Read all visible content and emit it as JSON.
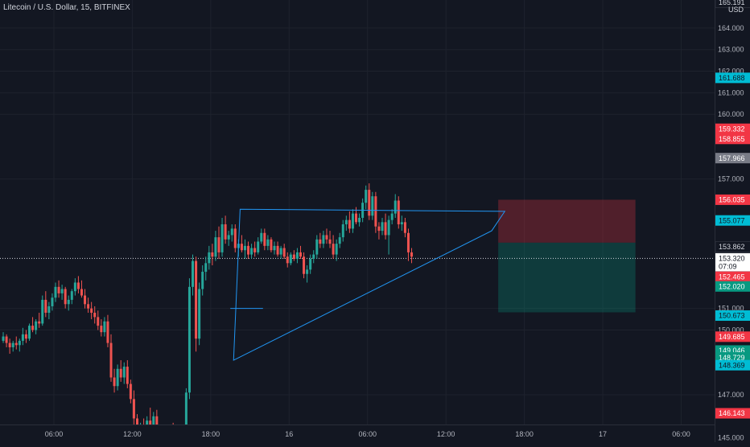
{
  "header": {
    "title": "Litecoin / U.S. Dollar, 15, BITFINEX",
    "currency": "USD"
  },
  "colors": {
    "up": "#26a69a",
    "down": "#ef5350",
    "line": "#2196f3",
    "grid": "#1e222d",
    "stop": "#f23645",
    "target": "#089981",
    "cyan": "#00bcd4",
    "gray": "#787b86"
  },
  "chart_data": {
    "type": "candlestick",
    "symbol": "Litecoin / U.S. Dollar",
    "interval": "15",
    "exchange": "BITFINEX",
    "y_ticks": [
      "164.000",
      "163.000",
      "162.000",
      "161.000",
      "160.000",
      "157.000",
      "151.000",
      "150.000",
      "147.000",
      "145.000"
    ],
    "ylim": [
      144.8,
      165.3
    ],
    "x_ticks": [
      {
        "label": "06:00",
        "bar": 16
      },
      {
        "label": "12:00",
        "bar": 40
      },
      {
        "label": "18:00",
        "bar": 64
      },
      {
        "label": "16",
        "bar": 88
      },
      {
        "label": "06:00",
        "bar": 112
      },
      {
        "label": "12:00",
        "bar": 136
      },
      {
        "label": "18:00",
        "bar": 160
      },
      {
        "label": "17",
        "bar": 184
      },
      {
        "label": "06:00",
        "bar": 208
      }
    ],
    "candles": [
      [
        149.5,
        149.9,
        149.4,
        149.7
      ],
      [
        149.7,
        149.8,
        149.2,
        149.4
      ],
      [
        149.4,
        149.6,
        148.9,
        149.2
      ],
      [
        149.2,
        149.5,
        149.0,
        149.4
      ],
      [
        149.4,
        149.7,
        149.1,
        149.3
      ],
      [
        149.3,
        149.6,
        149.0,
        149.5
      ],
      [
        149.5,
        150.1,
        149.3,
        149.8
      ],
      [
        149.8,
        150.0,
        149.4,
        149.6
      ],
      [
        149.6,
        150.3,
        149.5,
        150.2
      ],
      [
        150.2,
        150.6,
        149.9,
        150.0
      ],
      [
        150.0,
        150.5,
        149.8,
        150.4
      ],
      [
        150.4,
        150.8,
        150.1,
        150.3
      ],
      [
        150.3,
        151.6,
        150.2,
        151.4
      ],
      [
        151.4,
        151.8,
        150.6,
        150.8
      ],
      [
        150.8,
        151.3,
        150.5,
        151.1
      ],
      [
        151.1,
        151.7,
        150.9,
        151.5
      ],
      [
        151.5,
        152.2,
        151.3,
        152.0
      ],
      [
        152.0,
        152.3,
        151.5,
        151.7
      ],
      [
        151.7,
        152.1,
        151.4,
        151.9
      ],
      [
        151.9,
        152.0,
        151.0,
        151.2
      ],
      [
        151.2,
        151.6,
        150.9,
        151.4
      ],
      [
        151.4,
        151.9,
        151.2,
        151.8
      ],
      [
        151.8,
        152.4,
        151.6,
        152.2
      ],
      [
        152.2,
        152.5,
        151.7,
        151.9
      ],
      [
        151.9,
        152.3,
        151.5,
        151.6
      ],
      [
        151.6,
        151.9,
        151.0,
        151.2
      ],
      [
        151.2,
        151.5,
        150.8,
        151.0
      ],
      [
        151.0,
        151.3,
        150.5,
        150.8
      ],
      [
        150.8,
        151.1,
        150.3,
        150.6
      ],
      [
        150.6,
        150.9,
        150.0,
        150.2
      ],
      [
        150.2,
        150.5,
        149.7,
        149.9
      ],
      [
        149.9,
        150.6,
        149.7,
        150.4
      ],
      [
        150.4,
        150.7,
        149.2,
        149.4
      ],
      [
        149.4,
        149.8,
        147.6,
        147.8
      ],
      [
        147.8,
        148.2,
        147.1,
        147.4
      ],
      [
        147.4,
        148.4,
        147.2,
        148.2
      ],
      [
        148.2,
        148.6,
        147.6,
        147.8
      ],
      [
        147.8,
        148.5,
        147.5,
        148.3
      ],
      [
        148.3,
        148.6,
        147.3,
        147.5
      ],
      [
        147.5,
        147.7,
        146.6,
        146.8
      ],
      [
        146.8,
        147.2,
        145.6,
        145.9
      ],
      [
        145.9,
        146.1,
        145.0,
        145.3
      ],
      [
        145.3,
        145.7,
        144.9,
        145.5
      ],
      [
        145.5,
        145.9,
        145.1,
        145.3
      ],
      [
        145.3,
        146.0,
        145.0,
        145.8
      ],
      [
        145.8,
        146.4,
        145.4,
        145.6
      ],
      [
        145.6,
        146.2,
        145.3,
        146.0
      ],
      [
        146.0,
        146.3,
        144.9,
        145.2
      ],
      [
        145.2,
        145.5,
        144.9,
        145.1
      ],
      [
        145.1,
        145.4,
        144.9,
        145.3
      ],
      [
        145.3,
        145.6,
        145.0,
        145.2
      ],
      [
        145.2,
        145.6,
        145.0,
        145.5
      ],
      [
        145.5,
        145.7,
        145.0,
        145.1
      ],
      [
        145.1,
        145.4,
        144.9,
        145.2
      ],
      [
        145.2,
        145.3,
        144.9,
        145.0
      ],
      [
        145.0,
        145.6,
        144.9,
        145.4
      ],
      [
        145.4,
        147.3,
        145.2,
        147.1
      ],
      [
        147.1,
        152.4,
        146.8,
        152.0
      ],
      [
        152.0,
        153.5,
        151.6,
        153.2
      ],
      [
        153.2,
        153.4,
        149.0,
        149.6
      ],
      [
        149.6,
        152.2,
        149.3,
        151.9
      ],
      [
        151.9,
        153.0,
        151.6,
        152.7
      ],
      [
        152.7,
        153.4,
        152.3,
        153.1
      ],
      [
        153.1,
        153.9,
        152.8,
        153.6
      ],
      [
        153.6,
        154.0,
        153.0,
        153.4
      ],
      [
        153.4,
        154.6,
        153.2,
        154.3
      ],
      [
        154.3,
        154.8,
        153.3,
        153.6
      ],
      [
        153.6,
        155.2,
        153.4,
        154.9
      ],
      [
        154.9,
        155.3,
        154.0,
        154.2
      ],
      [
        154.2,
        154.6,
        153.9,
        154.4
      ],
      [
        154.4,
        154.9,
        154.1,
        154.7
      ],
      [
        154.7,
        154.9,
        153.6,
        153.8
      ],
      [
        153.8,
        154.2,
        153.4,
        154.0
      ],
      [
        154.0,
        154.4,
        153.6,
        153.7
      ],
      [
        153.7,
        154.2,
        153.3,
        153.9
      ],
      [
        153.9,
        154.1,
        153.3,
        153.5
      ],
      [
        153.5,
        154.0,
        153.3,
        153.8
      ],
      [
        153.8,
        154.1,
        153.4,
        153.6
      ],
      [
        153.6,
        154.3,
        153.5,
        154.1
      ],
      [
        154.1,
        154.7,
        154.0,
        154.5
      ],
      [
        154.5,
        154.7,
        153.7,
        153.9
      ],
      [
        153.9,
        154.4,
        153.7,
        154.2
      ],
      [
        154.2,
        154.3,
        153.6,
        153.7
      ],
      [
        153.7,
        154.1,
        153.5,
        153.9
      ],
      [
        153.9,
        154.1,
        153.4,
        153.5
      ],
      [
        153.5,
        153.9,
        153.3,
        153.8
      ],
      [
        153.8,
        154.0,
        153.3,
        153.4
      ],
      [
        153.4,
        153.6,
        152.9,
        153.1
      ],
      [
        153.1,
        153.6,
        153.0,
        153.5
      ],
      [
        153.5,
        153.7,
        153.2,
        153.3
      ],
      [
        153.3,
        153.8,
        153.1,
        153.6
      ],
      [
        153.6,
        153.9,
        153.3,
        153.4
      ],
      [
        153.4,
        153.6,
        152.4,
        152.6
      ],
      [
        152.6,
        153.0,
        152.2,
        152.8
      ],
      [
        152.8,
        153.5,
        152.6,
        153.3
      ],
      [
        153.3,
        153.7,
        153.1,
        153.5
      ],
      [
        153.5,
        154.4,
        153.3,
        154.2
      ],
      [
        154.2,
        154.5,
        153.8,
        154.0
      ],
      [
        154.0,
        154.6,
        153.8,
        154.4
      ],
      [
        154.4,
        154.7,
        154.0,
        154.2
      ],
      [
        154.2,
        154.6,
        153.8,
        154.0
      ],
      [
        154.0,
        154.4,
        153.3,
        153.5
      ],
      [
        153.5,
        154.2,
        153.2,
        154.0
      ],
      [
        154.0,
        154.5,
        153.8,
        154.3
      ],
      [
        154.3,
        155.1,
        154.1,
        154.9
      ],
      [
        154.9,
        155.3,
        154.6,
        155.1
      ],
      [
        155.1,
        155.5,
        154.5,
        154.7
      ],
      [
        154.7,
        155.6,
        154.5,
        155.4
      ],
      [
        155.4,
        155.7,
        154.9,
        155.0
      ],
      [
        155.0,
        155.4,
        154.8,
        155.2
      ],
      [
        155.2,
        156.1,
        155.0,
        155.9
      ],
      [
        155.9,
        156.7,
        155.6,
        156.5
      ],
      [
        156.5,
        156.8,
        155.1,
        155.3
      ],
      [
        155.3,
        156.4,
        155.1,
        156.2
      ],
      [
        156.2,
        156.4,
        154.5,
        154.8
      ],
      [
        154.8,
        155.0,
        154.2,
        154.6
      ],
      [
        154.6,
        155.2,
        154.4,
        155.0
      ],
      [
        155.0,
        155.4,
        154.2,
        154.4
      ],
      [
        154.4,
        155.3,
        153.5,
        155.1
      ],
      [
        155.1,
        155.6,
        154.9,
        155.4
      ],
      [
        155.4,
        156.3,
        155.2,
        156.0
      ],
      [
        156.0,
        156.2,
        154.7,
        154.9
      ],
      [
        154.9,
        155.3,
        154.6,
        155.0
      ],
      [
        155.0,
        155.2,
        154.3,
        154.5
      ],
      [
        154.5,
        154.7,
        153.2,
        153.6
      ],
      [
        153.6,
        153.8,
        153.1,
        153.4
      ]
    ],
    "start_bar": 0,
    "price_labels": [
      {
        "text": "165.191",
        "price": 165.19,
        "bg": "#131722",
        "fg": "#d1d4dc",
        "outline": true
      },
      {
        "text": "161.688",
        "price": 161.69,
        "bg": "#00bcd4",
        "fg": "#131722"
      },
      {
        "text": "159.332",
        "price": 159.33,
        "bg": "#f23645",
        "fg": "#ffffff"
      },
      {
        "text": "158.855",
        "price": 158.86,
        "bg": "#f23645",
        "fg": "#ffffff"
      },
      {
        "text": "157.966",
        "price": 157.97,
        "bg": "#787b86",
        "fg": "#ffffff"
      },
      {
        "text": "156.035",
        "price": 156.04,
        "bg": "#f23645",
        "fg": "#ffffff"
      },
      {
        "text": "155.077",
        "price": 155.08,
        "bg": "#00bcd4",
        "fg": "#131722"
      },
      {
        "text": "153.862",
        "price": 153.86,
        "bg": "#131722",
        "fg": "#d1d4dc",
        "outline": true
      },
      {
        "text": "153.320",
        "price": 153.32,
        "bg": "#ffffff",
        "fg": "#131722"
      },
      {
        "text": "07:09",
        "price": 152.96,
        "bg": "#ffffff",
        "fg": "#131722"
      },
      {
        "text": "152.465",
        "price": 152.47,
        "bg": "#f23645",
        "fg": "#ffffff"
      },
      {
        "text": "152.020",
        "price": 152.02,
        "bg": "#089981",
        "fg": "#ffffff"
      },
      {
        "text": "150.673",
        "price": 150.67,
        "bg": "#00bcd4",
        "fg": "#131722"
      },
      {
        "text": "149.685",
        "price": 149.69,
        "bg": "#f23645",
        "fg": "#ffffff"
      },
      {
        "text": "149.046",
        "price": 149.05,
        "bg": "#089981",
        "fg": "#ffffff"
      },
      {
        "text": "148.729",
        "price": 148.73,
        "bg": "#089981",
        "fg": "#ffffff"
      },
      {
        "text": "148.369",
        "price": 148.37,
        "bg": "#00bcd4",
        "fg": "#131722"
      },
      {
        "text": "146.143",
        "price": 146.14,
        "bg": "#f23645",
        "fg": "#ffffff"
      }
    ],
    "current_price": 153.32,
    "drawings": {
      "triangle": [
        [
          71,
          148.6
        ],
        [
          73,
          155.6
        ],
        [
          154,
          155.5
        ],
        [
          150,
          154.6
        ]
      ],
      "hline": {
        "bar_from": 70,
        "bar_to": 80,
        "price": 151.0
      },
      "position": {
        "bar_from": 152,
        "bar_to": 194,
        "stop": 156.04,
        "entry": 154.05,
        "target": 150.82
      }
    },
    "grid": true
  }
}
